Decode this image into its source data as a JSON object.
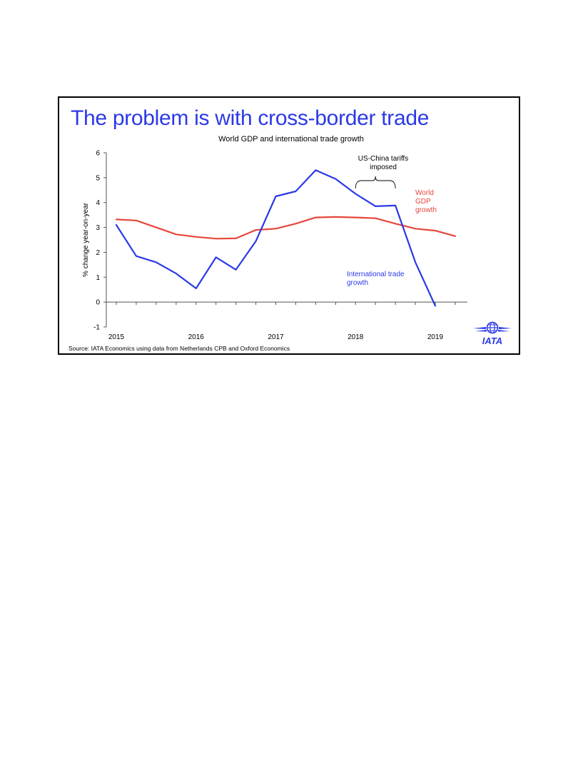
{
  "slide": {
    "title": "The problem is with cross-border trade",
    "source": "Source: IATA Economics using data from Netherlands CPB and Oxford Economics",
    "logo_text": "IATA"
  },
  "colors": {
    "title": "#2b39e6",
    "trade": "#2b39e6",
    "gdp": "#e8463a",
    "axis": "#555555"
  },
  "chart_data": {
    "type": "line",
    "title": "World GDP and international trade growth",
    "xlabel": "",
    "ylabel": "% change year-on-year",
    "xlim": [
      2015.0,
      2019.35
    ],
    "ylim": [
      -1,
      6
    ],
    "yticks": [
      -1,
      0,
      1,
      2,
      3,
      4,
      5,
      6
    ],
    "xticks": [
      {
        "value": 2015,
        "label": "2015"
      },
      {
        "value": 2016,
        "label": "2016"
      },
      {
        "value": 2017,
        "label": "2017"
      },
      {
        "value": 2018,
        "label": "2018"
      },
      {
        "value": 2019,
        "label": "2019"
      }
    ],
    "grid": false,
    "series": [
      {
        "name": "International trade growth",
        "color": "#2b39e6",
        "x": [
          2015.0,
          2015.25,
          2015.5,
          2015.75,
          2016.0,
          2016.25,
          2016.5,
          2016.75,
          2017.0,
          2017.25,
          2017.5,
          2017.75,
          2018.0,
          2018.25,
          2018.5,
          2018.75,
          2019.0
        ],
        "y": [
          3.1,
          1.85,
          1.6,
          1.15,
          0.55,
          1.8,
          1.3,
          2.45,
          4.25,
          4.45,
          5.3,
          4.95,
          4.35,
          3.85,
          3.88,
          1.6,
          -0.15
        ]
      },
      {
        "name": "World GDP growth",
        "color": "#e8463a",
        "x": [
          2015.0,
          2015.25,
          2015.5,
          2015.75,
          2016.0,
          2016.25,
          2016.5,
          2016.75,
          2017.0,
          2017.25,
          2017.5,
          2017.75,
          2018.0,
          2018.25,
          2018.5,
          2018.75,
          2019.0,
          2019.25
        ],
        "y": [
          3.32,
          3.28,
          3.0,
          2.72,
          2.62,
          2.55,
          2.56,
          2.9,
          2.95,
          3.15,
          3.4,
          3.42,
          3.4,
          3.37,
          3.15,
          2.95,
          2.87,
          2.65
        ]
      }
    ],
    "annotations": [
      {
        "id": "trade",
        "lines": [
          "International trade",
          "growth"
        ],
        "color": "#2b39e6"
      },
      {
        "id": "gdp",
        "lines": [
          "World",
          "GDP",
          "growth"
        ],
        "color": "#e8463a"
      },
      {
        "id": "tariffs",
        "lines": [
          "US-China tariffs",
          "imposed"
        ],
        "color": "#000000",
        "range": [
          2018.0,
          2018.5
        ]
      }
    ]
  }
}
